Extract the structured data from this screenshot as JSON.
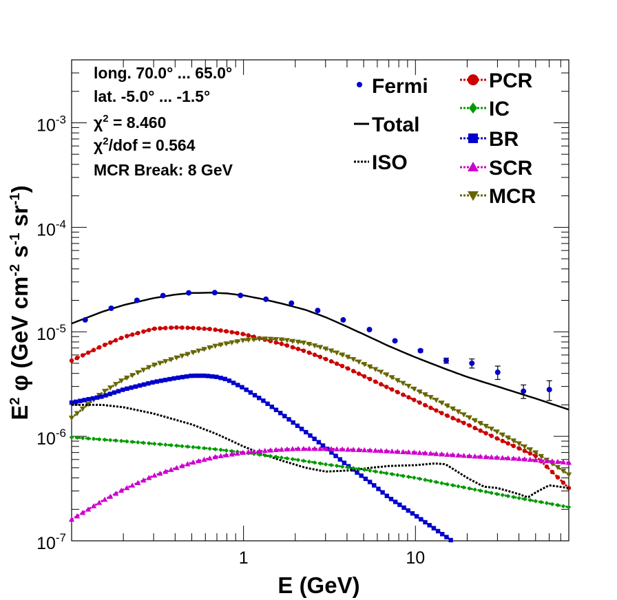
{
  "chart_data": {
    "type": "line",
    "title": "",
    "xlabel": "E (GeV)",
    "ylabel": {
      "base": "E",
      "exp1": "2",
      "phi": " φ (GeV cm",
      "exp2": "-2",
      "mid": " s",
      "exp3": "-1",
      "tail": " sr",
      "exp4": "-1",
      "close": ")"
    },
    "xscale": "log",
    "yscale": "log",
    "xlim": [
      0.1,
      78
    ],
    "ylim": [
      1e-07,
      0.004
    ],
    "grid": false,
    "x_ticks": [
      {
        "value": 1,
        "label": "1"
      },
      {
        "value": 10,
        "label": "10"
      }
    ],
    "y_ticks": [
      {
        "value": 1e-07,
        "base": "10",
        "exp": "-7"
      },
      {
        "value": 1e-06,
        "base": "10",
        "exp": "-6"
      },
      {
        "value": 1e-05,
        "base": "10",
        "exp": "-5"
      },
      {
        "value": 0.0001,
        "base": "10",
        "exp": "-4"
      },
      {
        "value": 0.001,
        "base": "10",
        "exp": "-3"
      }
    ],
    "info_lines": [
      {
        "text": "long. 70.0° ... 65.0°"
      },
      {
        "text": "lat. -5.0° ... -1.5°"
      },
      {
        "prefix": "χ",
        "sup": "2",
        "text": " = 8.460"
      },
      {
        "prefix": "χ",
        "sup": "2",
        "text": "/dof = 0.564"
      },
      {
        "text": "MCR Break:  8 GeV"
      }
    ],
    "legend": [
      {
        "name": "Fermi",
        "color": "#0000cc",
        "style": "point"
      },
      {
        "name": "Total",
        "color": "#000000",
        "style": "solid"
      },
      {
        "name": "ISO",
        "color": "#000000",
        "style": "dotted"
      },
      {
        "name": "PCR",
        "color": "#cc0000",
        "style": "circle"
      },
      {
        "name": "IC",
        "color": "#009900",
        "style": "diamond"
      },
      {
        "name": "BR",
        "color": "#0000cc",
        "style": "square"
      },
      {
        "name": "SCR",
        "color": "#cc00cc",
        "style": "triangle-up"
      },
      {
        "name": "MCR",
        "color": "#666600",
        "style": "triangle-down"
      }
    ],
    "fermi": {
      "x": [
        0.12,
        0.17,
        0.24,
        0.34,
        0.48,
        0.68,
        0.96,
        1.35,
        1.9,
        2.7,
        3.8,
        5.4,
        7.6,
        10.7,
        15.1,
        21.3,
        30.1,
        42.5,
        60.1,
        84.9
      ],
      "y": [
        1.3e-05,
        1.68e-05,
        2e-05,
        2.22e-05,
        2.36e-05,
        2.37e-05,
        2.23e-05,
        2.05e-05,
        1.88e-05,
        1.6e-05,
        1.3e-05,
        1.05e-05,
        8.2e-06,
        6.6e-06,
        5.3e-06,
        5e-06,
        4.1e-06,
        2.7e-06,
        2.8e-06,
        2.3e-06
      ],
      "err_low": [
        0,
        0,
        0,
        0,
        0,
        0,
        0,
        0,
        0,
        0,
        0,
        0,
        0,
        2e-07,
        3e-07,
        5e-07,
        6e-07,
        4e-07,
        6e-07,
        6e-07
      ],
      "err_high": [
        0,
        0,
        0,
        0,
        0,
        0,
        0,
        0,
        0,
        0,
        0,
        0,
        0,
        2e-07,
        3e-07,
        5e-07,
        6e-07,
        4e-07,
        6e-07,
        8e-07
      ]
    },
    "series": [
      {
        "name": "Total",
        "color": "#000000",
        "style": "solid",
        "x": [
          0.1,
          0.15,
          0.2,
          0.3,
          0.4,
          0.5,
          0.65,
          0.8,
          1,
          1.3,
          1.7,
          2.3,
          3,
          4,
          5.5,
          7,
          10,
          15,
          20,
          30,
          50,
          78
        ],
        "y": [
          1.2e-05,
          1.55e-05,
          1.8e-05,
          2.1e-05,
          2.27e-05,
          2.35e-05,
          2.37e-05,
          2.33e-05,
          2.23e-05,
          2.05e-05,
          1.85e-05,
          1.62e-05,
          1.38e-05,
          1.12e-05,
          8.8e-06,
          7.3e-06,
          5.7e-06,
          4.4e-06,
          3.7e-06,
          3e-06,
          2.3e-06,
          1.8e-06
        ]
      },
      {
        "name": "PCR",
        "color": "#cc0000",
        "style": "circle",
        "x": [
          0.1,
          0.15,
          0.2,
          0.3,
          0.4,
          0.5,
          0.65,
          0.8,
          1,
          1.3,
          1.7,
          2.3,
          3,
          4,
          5.5,
          7,
          10,
          15,
          20,
          30,
          50,
          78
        ],
        "y": [
          5.3e-06,
          7.3e-06,
          8.9e-06,
          1.07e-05,
          1.1e-05,
          1.09e-05,
          1.06e-05,
          1.01e-05,
          9.5e-06,
          8.5e-06,
          7.6e-06,
          6.5e-06,
          5.5e-06,
          4.5e-06,
          3.5e-06,
          2.9e-06,
          2.2e-06,
          1.6e-06,
          1.3e-06,
          9.5e-07,
          6.5e-07,
          3.2e-07
        ]
      },
      {
        "name": "MCR",
        "color": "#666600",
        "style": "triangle-down",
        "x": [
          0.1,
          0.15,
          0.2,
          0.3,
          0.5,
          0.7,
          1,
          1.3,
          1.7,
          2.3,
          3,
          4,
          5.5,
          7,
          10,
          15,
          20,
          30,
          50,
          78
        ],
        "y": [
          1.5e-06,
          2.6e-06,
          3.5e-06,
          4.8e-06,
          6.3e-06,
          7.4e-06,
          8.3e-06,
          8.6e-06,
          8.4e-06,
          7.8e-06,
          6.9e-06,
          5.8e-06,
          4.6e-06,
          3.8e-06,
          2.8e-06,
          2e-06,
          1.55e-06,
          1.1e-06,
          7e-07,
          4.3e-07
        ]
      },
      {
        "name": "BR",
        "color": "#0000cc",
        "style": "square",
        "x": [
          0.1,
          0.15,
          0.2,
          0.3,
          0.4,
          0.5,
          0.6,
          0.7,
          0.8,
          1,
          1.3,
          1.7,
          2.3,
          3,
          4,
          5.5,
          7,
          10,
          15,
          17
        ],
        "y": [
          2.1e-06,
          2.4e-06,
          2.8e-06,
          3.3e-06,
          3.6e-06,
          3.8e-06,
          3.8e-06,
          3.7e-06,
          3.5e-06,
          2.9e-06,
          2.2e-06,
          1.6e-06,
          1.1e-06,
          7.8e-07,
          5.3e-07,
          3.6e-07,
          2.6e-07,
          1.75e-07,
          1.1e-07,
          9.5e-08
        ]
      },
      {
        "name": "ISO",
        "color": "#000000",
        "style": "dotted",
        "x": [
          0.1,
          0.15,
          0.2,
          0.3,
          0.5,
          0.7,
          1,
          1.3,
          1.7,
          2.3,
          3,
          4,
          5.5,
          7,
          10,
          13,
          15,
          20,
          25,
          30,
          40,
          45,
          50,
          60,
          78
        ],
        "y": [
          2e-06,
          2e-06,
          1.9e-06,
          1.65e-06,
          1.3e-06,
          1.05e-06,
          8e-07,
          6.7e-07,
          5.8e-07,
          5e-07,
          4.6e-07,
          4.7e-07,
          5e-07,
          5.2e-07,
          5.3e-07,
          5.5e-07,
          5.4e-07,
          4e-07,
          3.3e-07,
          3.2e-07,
          2.8e-07,
          2.6e-07,
          2.9e-07,
          3.4e-07,
          3.2e-07
        ]
      },
      {
        "name": "IC",
        "color": "#009900",
        "style": "diamond",
        "x": [
          0.1,
          0.2,
          0.3,
          0.5,
          0.7,
          1,
          1.5,
          2,
          3,
          5,
          7,
          10,
          15,
          20,
          30,
          50,
          78
        ],
        "y": [
          9.8e-07,
          9e-07,
          8.5e-07,
          7.9e-07,
          7.5e-07,
          7e-07,
          6.4e-07,
          6e-07,
          5.4e-07,
          4.8e-07,
          4.4e-07,
          4e-07,
          3.5e-07,
          3.2e-07,
          2.8e-07,
          2.4e-07,
          2.1e-07
        ]
      },
      {
        "name": "SCR",
        "color": "#cc00cc",
        "style": "triangle-up",
        "x": [
          0.1,
          0.15,
          0.2,
          0.3,
          0.5,
          0.7,
          1,
          1.5,
          2,
          3,
          5,
          10,
          20,
          40,
          78
        ],
        "y": [
          1.6e-07,
          2.4e-07,
          3.1e-07,
          4.2e-07,
          5.6e-07,
          6.4e-07,
          7e-07,
          7.4e-07,
          7.6e-07,
          7.6e-07,
          7.4e-07,
          7e-07,
          6.5e-07,
          6.1e-07,
          5.6e-07
        ]
      }
    ]
  }
}
